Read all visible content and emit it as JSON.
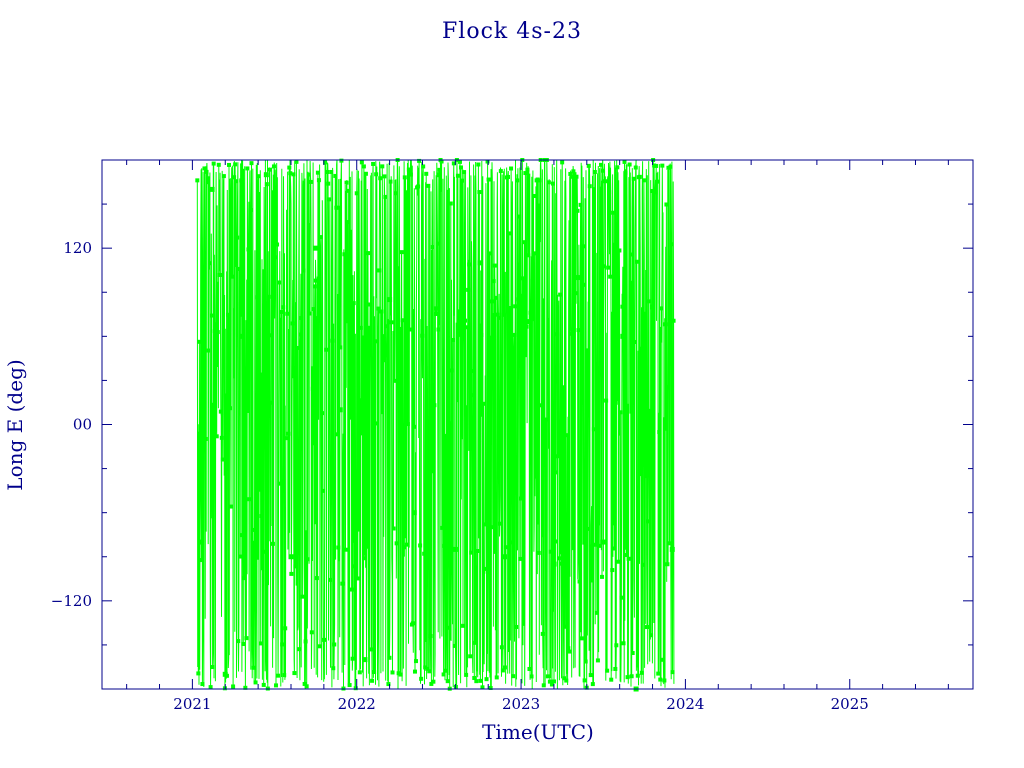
{
  "chart_data": {
    "type": "line",
    "title": "Flock 4s-23",
    "xlabel": "Time(UTC)",
    "ylabel": "Long E (deg)",
    "xlim": [
      2020.45,
      2025.75
    ],
    "ylim": [
      -180,
      180
    ],
    "x_ticks": [
      2021,
      2022,
      2023,
      2024,
      2025
    ],
    "x_tick_labels": [
      "2021",
      "2022",
      "2023",
      "2024",
      "2025"
    ],
    "y_ticks": [
      -120,
      0,
      120
    ],
    "y_tick_labels": [
      "−120",
      "00",
      "120"
    ],
    "data_range_x": [
      2021.03,
      2023.93
    ],
    "data_range_y": [
      -180,
      180
    ],
    "series": [
      {
        "marker": "square",
        "description_values_sampled": true,
        "x": [
          2021.05,
          2021.12,
          2021.2,
          2021.3,
          2021.45,
          2021.6,
          2021.75,
          2021.9,
          2022.05,
          2022.2,
          2022.35,
          2022.5,
          2022.6,
          2022.75,
          2022.9,
          2023.05,
          2023.2,
          2023.35,
          2023.5,
          2023.62,
          2023.7,
          2023.8,
          2023.92
        ],
        "y": [
          -80,
          160,
          -170,
          60,
          170,
          -90,
          120,
          10,
          -160,
          85,
          -60,
          170,
          -85,
          110,
          -90,
          70,
          -95,
          100,
          -80,
          60,
          -180,
          80,
          -85
        ]
      }
    ],
    "colors": {
      "axes": "#00008b",
      "data": "#00ff00"
    },
    "grid": false
  }
}
